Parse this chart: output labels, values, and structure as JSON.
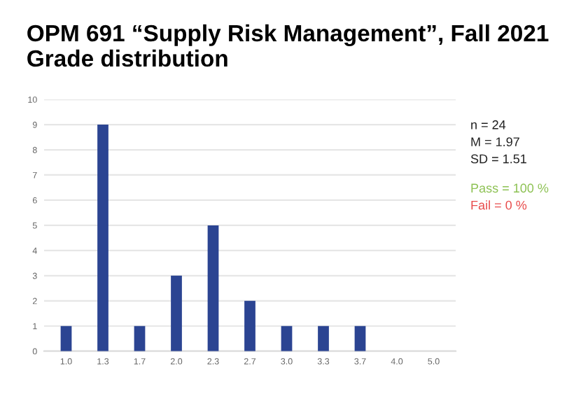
{
  "chart_data": {
    "type": "bar",
    "title": "OPM 691 “Supply Risk Management”, Fall 2021\nGrade distribution",
    "categories": [
      "1.0",
      "1.3",
      "1.7",
      "2.0",
      "2.3",
      "2.7",
      "3.0",
      "3.3",
      "3.7",
      "4.0",
      "5.0"
    ],
    "values": [
      1,
      9,
      1,
      3,
      5,
      2,
      1,
      1,
      1,
      0,
      0
    ],
    "color": "#2b4492",
    "ylim": [
      0,
      10
    ],
    "yticks": [
      0,
      1,
      2,
      3,
      4,
      5,
      6,
      7,
      8,
      9,
      10
    ],
    "grid": "y",
    "annotations": [
      "n = 24",
      "M = 1.97",
      "SD = 1.51",
      "Pass = 100 %",
      "Fail = 0 %"
    ]
  }
}
